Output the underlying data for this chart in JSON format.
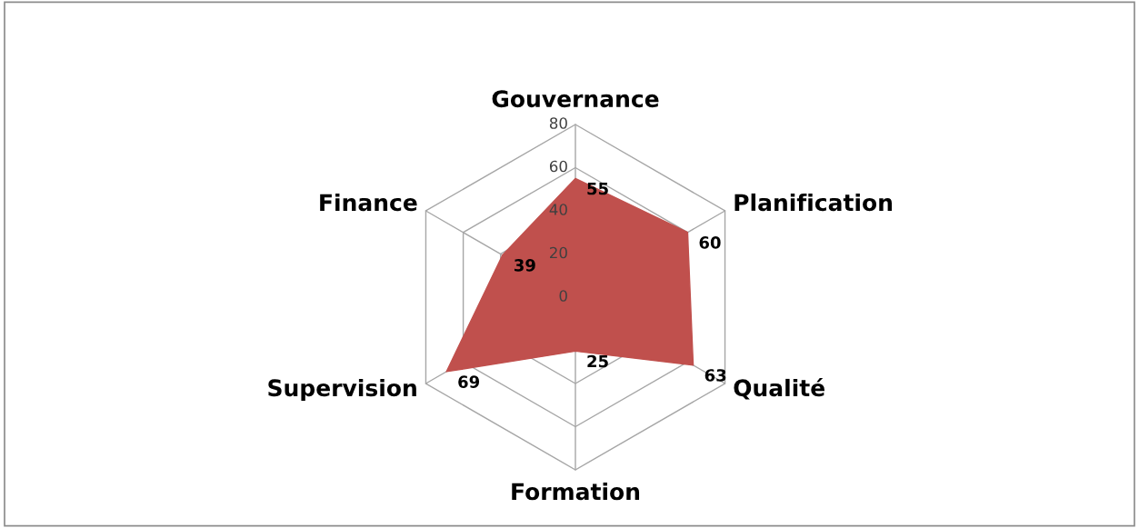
{
  "chart_data": {
    "type": "radar",
    "categories": [
      "Gouvernance",
      "Planification",
      "Qualité",
      "Formation",
      "Supervision",
      "Finance"
    ],
    "series": [
      {
        "color": "#c0504d",
        "values": [
          55,
          60,
          63,
          25,
          69,
          39
        ]
      }
    ],
    "ylim": [
      0,
      80
    ],
    "yticks": [
      0,
      20,
      40,
      60,
      80
    ],
    "grid": true,
    "data_labels": true
  }
}
